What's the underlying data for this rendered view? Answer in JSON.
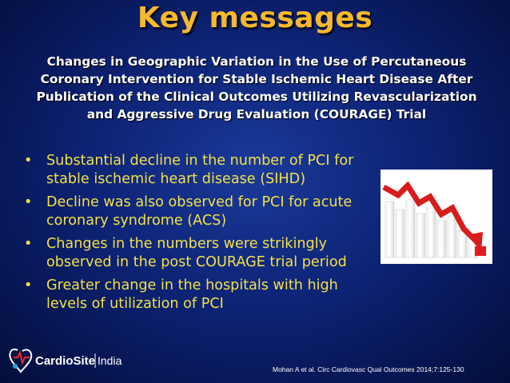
{
  "slide": {
    "title": "Key messages",
    "subtitle": "Changes in Geographic Variation in the Use of Percutaneous Coronary Intervention for Stable Ischemic Heart Disease After Publication of the Clinical Outcomes Utilizing Revascularization and Aggressive Drug Evaluation (COURAGE) Trial",
    "bullets": [
      "Substantial decline in the number of PCI for stable ischemic heart disease (SIHD)",
      "Decline was also observed for PCI for acute coronary syndrome (ACS)",
      "Changes in the numbers were strikingly observed in the post COURAGE trial period",
      "Greater change in the hospitals with high levels of utilization of PCI"
    ],
    "citation": "Mohan A et al. Circ Cardiovasc Qual Outcomes 2014;7:125-130"
  },
  "logo": {
    "text_main": "CardioSite",
    "text_suffix": "India"
  },
  "colors": {
    "title": "#f6b92c",
    "bullet_text": "#f2e04a",
    "background": "#0d2375",
    "arrow": "#d81c1c"
  },
  "icons": [
    "declining-bar-chart-with-red-arrow",
    "heart-logo-icon"
  ]
}
